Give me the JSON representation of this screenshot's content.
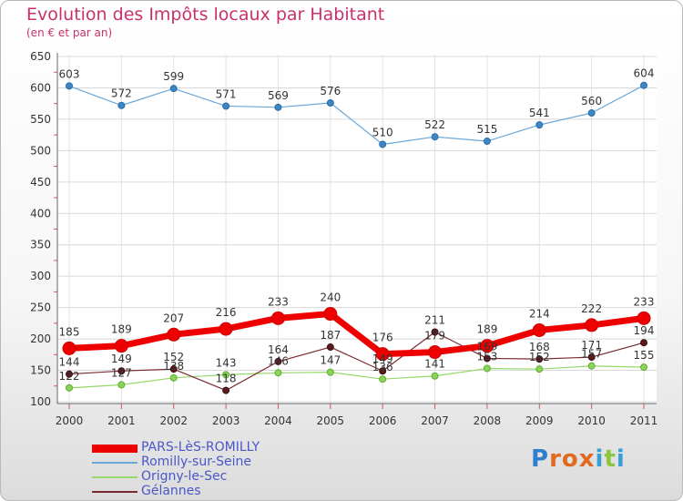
{
  "header": {
    "title": "Evolution des Impôts locaux par Habitant",
    "subtitle": "(en € et par an)"
  },
  "logo": {
    "text": "Proxiti",
    "letters": [
      "P",
      "r",
      "o",
      "x",
      "i",
      "t",
      "i"
    ],
    "colors": [
      "#2f7fcf",
      "#e06a1f",
      "#e06a1f",
      "#e06a1f",
      "#35a0d6",
      "#8ac53f",
      "#35a0d6"
    ]
  },
  "chart_data": {
    "type": "line",
    "title": "Evolution des Impôts locaux par Habitant",
    "subtitle": "(en € et par an)",
    "xlabel": "",
    "ylabel": "",
    "x": [
      "2000",
      "2001",
      "2002",
      "2003",
      "2004",
      "2005",
      "2006",
      "2007",
      "2008",
      "2009",
      "2010",
      "2011"
    ],
    "yticks": [
      100,
      150,
      200,
      250,
      300,
      350,
      400,
      450,
      500,
      550,
      600,
      650
    ],
    "ylim": [
      100,
      650
    ],
    "grid": true,
    "legend_position": "bottom-left",
    "series": [
      {
        "name": "PARS-LèS-ROMILLY",
        "color": "#ee0000",
        "values": [
          185,
          189,
          207,
          216,
          233,
          240,
          176,
          179,
          189,
          214,
          222,
          233
        ],
        "labels": [
          "185",
          "189",
          "207",
          "216",
          "233",
          "240",
          "176",
          "179",
          "189",
          "214",
          "222",
          "233"
        ]
      },
      {
        "name": "Romilly-sur-Seine",
        "color": "#6aa7d8",
        "values": [
          603,
          572,
          599,
          571,
          569,
          576,
          510,
          522,
          515,
          541,
          560,
          604
        ],
        "labels": [
          "603",
          "572",
          "599",
          "571",
          "569",
          "576",
          "510",
          "522",
          "515",
          "541",
          "560",
          "604"
        ]
      },
      {
        "name": "Origny-le-Sec",
        "color": "#96d86a",
        "values": [
          122,
          127,
          138,
          143,
          146,
          147,
          136,
          141,
          153,
          152,
          157,
          155
        ],
        "labels": [
          "122",
          "127",
          "138",
          "143",
          "146",
          "147",
          "136",
          "141",
          "153",
          "152",
          "157",
          "155"
        ]
      },
      {
        "name": "Gélannes",
        "color": "#7a2b2f",
        "values": [
          144,
          149,
          152,
          118,
          164,
          187,
          149,
          211,
          169,
          168,
          171,
          194
        ],
        "labels": [
          "144",
          "149",
          "152",
          "118",
          "164",
          "187",
          "149",
          "211",
          "169",
          "168",
          "171",
          "194"
        ]
      }
    ]
  }
}
